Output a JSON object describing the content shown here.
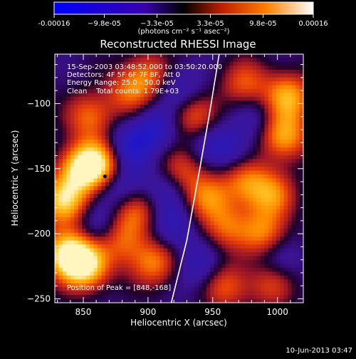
{
  "chart_data": {
    "type": "heatmap",
    "title": "Reconstructed RHESSI Image",
    "xlabel": "Heliocentric X (arcsec)",
    "ylabel": "Heliocentric Y (arcsec)",
    "xlim": [
      828,
      1020
    ],
    "ylim": [
      -253,
      -62
    ],
    "xticks": [
      850,
      900,
      950,
      1000
    ],
    "yticks": [
      -100,
      -150,
      -200,
      -250
    ],
    "colorbar": {
      "unit": "(photons cm⁻² s⁻¹ asec⁻²)",
      "range": [
        -0.00016,
        0.00016
      ],
      "tick_labels": [
        "-0.00016",
        "−9.8e-05",
        "−3.3e-05",
        "3.3e-05",
        "9.8e-05",
        "0.00016"
      ],
      "tick_values": [
        -0.00016,
        -9.8e-05,
        -3.3e-05,
        3.3e-05,
        9.8e-05,
        0.00016
      ]
    },
    "annotations": [
      "15-Sep-2003 03:48:52.000 to 03:50:20.000",
      "Detectors: 4F 5F 6F 7F 8F, Att 0",
      "Energy Range: 25.0 - 50.0 keV",
      "Clean    Total counts: 1.79E+03"
    ],
    "peak": {
      "label": "Position of Peak = [848,-168]",
      "x": 848,
      "y": -168
    },
    "limb_curve": [
      [
        918,
        -253
      ],
      [
        930,
        -205
      ],
      [
        940,
        -150
      ],
      [
        948,
        -105
      ],
      [
        955,
        -62
      ]
    ],
    "blobs": [
      {
        "x": 838,
        "y": -215,
        "v": 1.0
      },
      {
        "x": 852,
        "y": -225,
        "v": 0.9
      },
      {
        "x": 835,
        "y": -175,
        "v": 0.85
      },
      {
        "x": 850,
        "y": -150,
        "v": 0.95
      },
      {
        "x": 865,
        "y": -145,
        "v": 0.7
      },
      {
        "x": 855,
        "y": -110,
        "v": 0.55
      },
      {
        "x": 900,
        "y": -78,
        "v": 0.5
      },
      {
        "x": 885,
        "y": -92,
        "v": 0.45
      },
      {
        "x": 880,
        "y": -205,
        "v": 0.5
      },
      {
        "x": 890,
        "y": -183,
        "v": 0.55
      },
      {
        "x": 905,
        "y": -222,
        "v": 0.6
      },
      {
        "x": 935,
        "y": -110,
        "v": 0.55
      },
      {
        "x": 925,
        "y": -152,
        "v": 0.5
      },
      {
        "x": 945,
        "y": -172,
        "v": 0.55
      },
      {
        "x": 960,
        "y": -195,
        "v": 0.5
      },
      {
        "x": 975,
        "y": -160,
        "v": 0.55
      },
      {
        "x": 995,
        "y": -170,
        "v": 0.6
      },
      {
        "x": 990,
        "y": -200,
        "v": 0.6
      },
      {
        "x": 1005,
        "y": -125,
        "v": 0.75
      },
      {
        "x": 1008,
        "y": -95,
        "v": 0.75
      },
      {
        "x": 975,
        "y": -85,
        "v": 0.5
      },
      {
        "x": 960,
        "y": -240,
        "v": 0.5
      },
      {
        "x": 995,
        "y": -238,
        "v": 0.45
      },
      {
        "x": 880,
        "y": -165,
        "v": -0.4
      },
      {
        "x": 882,
        "y": -135,
        "v": -0.5
      },
      {
        "x": 862,
        "y": -195,
        "v": -0.35
      },
      {
        "x": 905,
        "y": -120,
        "v": -0.45
      },
      {
        "x": 915,
        "y": -165,
        "v": -0.35
      },
      {
        "x": 918,
        "y": -195,
        "v": -0.4
      },
      {
        "x": 940,
        "y": -225,
        "v": -0.35
      },
      {
        "x": 945,
        "y": -130,
        "v": -0.25
      },
      {
        "x": 965,
        "y": -135,
        "v": -0.3
      },
      {
        "x": 985,
        "y": -110,
        "v": -0.25
      },
      {
        "x": 1000,
        "y": -220,
        "v": -0.3
      },
      {
        "x": 925,
        "y": -90,
        "v": -0.35
      }
    ]
  },
  "footer": {
    "date": "10-Jun-2013 03:47"
  }
}
